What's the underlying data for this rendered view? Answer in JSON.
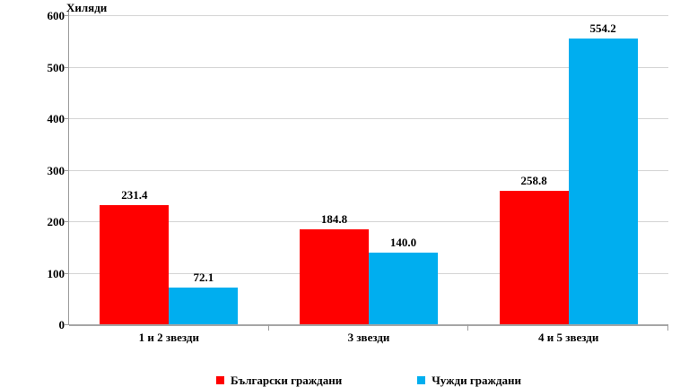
{
  "chart_data": {
    "type": "bar",
    "title": "Хиляди",
    "categories": [
      "1 и 2 звезди",
      "3 звезди",
      "4 и 5 звезди"
    ],
    "series": [
      {
        "name": "Български граждани",
        "color": "#ff0000",
        "values": [
          231.4,
          184.8,
          258.8
        ],
        "labels": [
          "231.4",
          "184.8",
          "258.8"
        ]
      },
      {
        "name": "Чужди граждани",
        "color": "#00aeef",
        "values": [
          72.1,
          140.0,
          554.2
        ],
        "labels": [
          "72.1",
          "140.0",
          "554.2"
        ]
      }
    ],
    "ylim": [
      0,
      600
    ],
    "yticks": [
      0,
      100,
      200,
      300,
      400,
      500,
      600
    ],
    "grid": true,
    "legend_position": "bottom",
    "colors": {
      "gridline": "#d4d4d4",
      "axis": "#9c9c9c"
    }
  }
}
